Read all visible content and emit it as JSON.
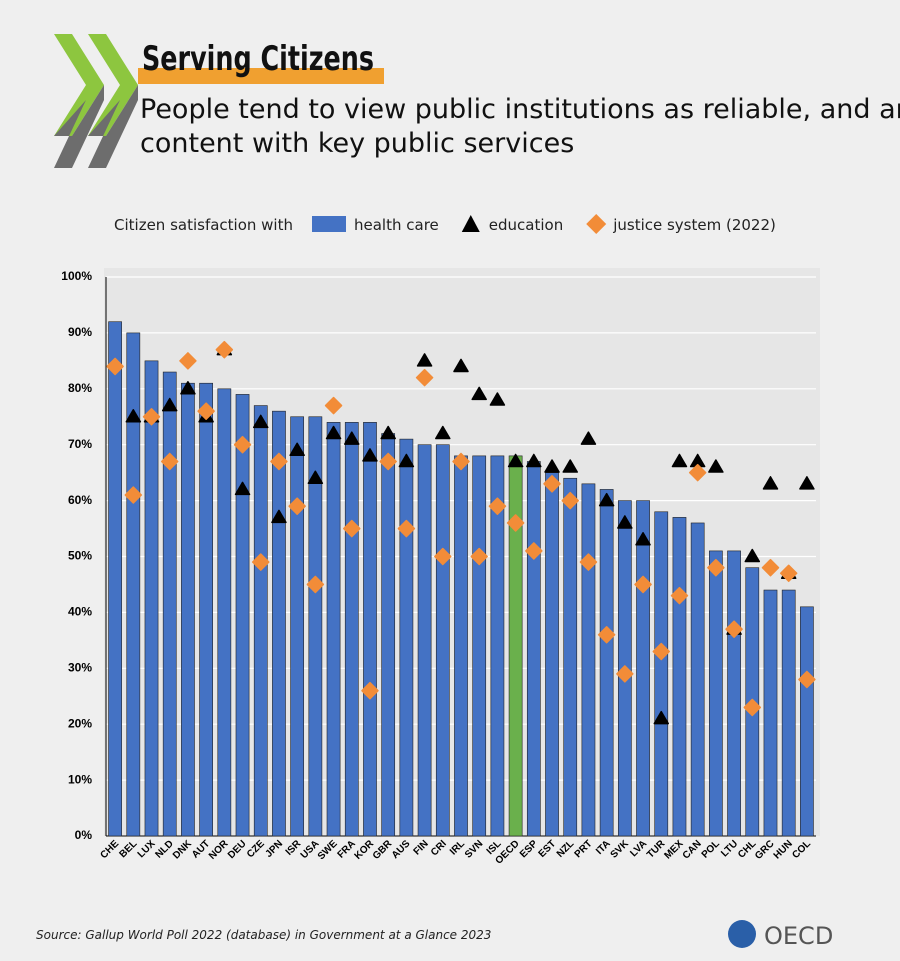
{
  "chart_data": {
    "type": "bar",
    "title": "Serving Citizens",
    "subtitle": "People tend to view public institutions as reliable, and are broadly content with key public services",
    "legend_title": "Citizen satisfaction with",
    "source": "Source: Gallup World Poll 2022 (database) in Government at a Glance 2023",
    "logo": "OECD",
    "categories": [
      "CHE",
      "BEL",
      "LUX",
      "NLD",
      "DNK",
      "AUT",
      "NOR",
      "DEU",
      "CZE",
      "JPN",
      "ISR",
      "USA",
      "SWE",
      "FRA",
      "KOR",
      "GBR",
      "AUS",
      "FIN",
      "CRI",
      "IRL",
      "SVN",
      "ISL",
      "OECD",
      "ESP",
      "EST",
      "NZL",
      "PRT",
      "ITA",
      "SVK",
      "LVA",
      "TUR",
      "MEX",
      "CAN",
      "POL",
      "LTU",
      "CHL",
      "GRC",
      "HUN",
      "COL"
    ],
    "highlight_category": "OECD",
    "highlight_color": "#6ab04c",
    "series": [
      {
        "name": "health care",
        "mark": "bar",
        "color": "#4472c4",
        "values": [
          92,
          90,
          85,
          83,
          81,
          81,
          80,
          79,
          77,
          76,
          75,
          75,
          74,
          74,
          74,
          72,
          71,
          70,
          70,
          68,
          68,
          68,
          68,
          67,
          65,
          64,
          63,
          62,
          60,
          60,
          58,
          57,
          56,
          51,
          51,
          48,
          44,
          44,
          41
        ]
      },
      {
        "name": "education",
        "mark": "triangle",
        "color": "#000000",
        "values": [
          null,
          75,
          75,
          77,
          80,
          75,
          87,
          62,
          74,
          57,
          69,
          64,
          72,
          71,
          68,
          72,
          67,
          85,
          72,
          84,
          79,
          78,
          67,
          67,
          66,
          66,
          71,
          60,
          56,
          53,
          21,
          67,
          67,
          66,
          37,
          50,
          63,
          47,
          63
        ]
      },
      {
        "name": "justice system (2022)",
        "mark": "diamond",
        "color": "#f28c38",
        "values": [
          84,
          61,
          75,
          67,
          85,
          76,
          87,
          70,
          49,
          67,
          59,
          45,
          77,
          55,
          26,
          67,
          55,
          82,
          50,
          67,
          50,
          59,
          56,
          51,
          63,
          60,
          49,
          36,
          29,
          45,
          33,
          43,
          65,
          48,
          37,
          23,
          48,
          47,
          28
        ]
      }
    ],
    "ylim": [
      0,
      100
    ],
    "yticks": [
      {
        "value": 0,
        "label": "0%"
      },
      {
        "value": 10,
        "label": "10%"
      },
      {
        "value": 20,
        "label": "20%"
      },
      {
        "value": 30,
        "label": "30%"
      },
      {
        "value": 40,
        "label": "40%"
      },
      {
        "value": 50,
        "label": "50%"
      },
      {
        "value": 60,
        "label": "60%"
      },
      {
        "value": 70,
        "label": "70%"
      },
      {
        "value": 80,
        "label": "80%"
      },
      {
        "value": 90,
        "label": "90%"
      },
      {
        "value": 100,
        "label": "100%"
      }
    ],
    "grid": true
  }
}
